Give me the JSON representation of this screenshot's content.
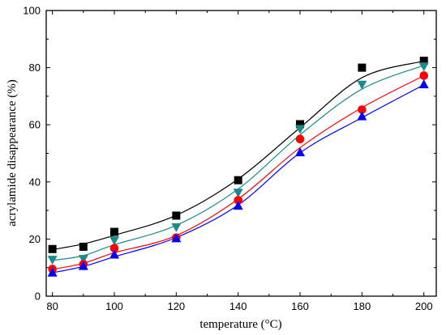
{
  "chart_data": {
    "type": "scatter",
    "title": "",
    "xlabel": "temperature (°C)",
    "ylabel": "acrylamide disappearance (%)",
    "xlim": [
      78,
      204
    ],
    "ylim": [
      0,
      100
    ],
    "xticks": [
      80,
      100,
      120,
      140,
      160,
      180,
      200
    ],
    "yticks": [
      0,
      20,
      40,
      60,
      80,
      100
    ],
    "grid": false,
    "legend": "none",
    "series": [
      {
        "marker": "square",
        "color": "#000000",
        "x": [
          80,
          90,
          100,
          120,
          140,
          160,
          180,
          200
        ],
        "y": [
          16.5,
          17.3,
          22.5,
          28.2,
          40.6,
          60.2,
          80.0,
          82.4
        ],
        "fit_y": [
          16.3,
          18.3,
          21.3,
          28.3,
          41.0,
          59.0,
          76.5,
          82.3
        ]
      },
      {
        "marker": "triangle-down",
        "color": "#1a8a8a",
        "x": [
          80,
          90,
          100,
          120,
          140,
          160,
          180,
          200
        ],
        "y": [
          12.7,
          13.0,
          19.5,
          24.1,
          36.2,
          58.5,
          74.0,
          80.4
        ],
        "fit_y": [
          12.5,
          14.2,
          18.0,
          24.8,
          37.5,
          56.5,
          72.5,
          80.8
        ]
      },
      {
        "marker": "circle",
        "color": "#ff0000",
        "x": [
          80,
          90,
          100,
          120,
          140,
          160,
          180,
          200
        ],
        "y": [
          9.5,
          11.2,
          16.8,
          20.5,
          33.6,
          55.0,
          65.3,
          77.2
        ],
        "fit_y": [
          9.4,
          11.5,
          15.2,
          21.2,
          34.0,
          52.0,
          66.0,
          77.2
        ]
      },
      {
        "marker": "triangle-up",
        "color": "#0000ff",
        "x": [
          80,
          90,
          100,
          120,
          140,
          160,
          180,
          200
        ],
        "y": [
          8.3,
          10.6,
          14.6,
          20.3,
          31.7,
          50.4,
          63.0,
          74.2
        ],
        "fit_y": [
          8.2,
          10.4,
          13.8,
          20.5,
          31.9,
          50.2,
          62.5,
          74.0
        ]
      }
    ]
  }
}
